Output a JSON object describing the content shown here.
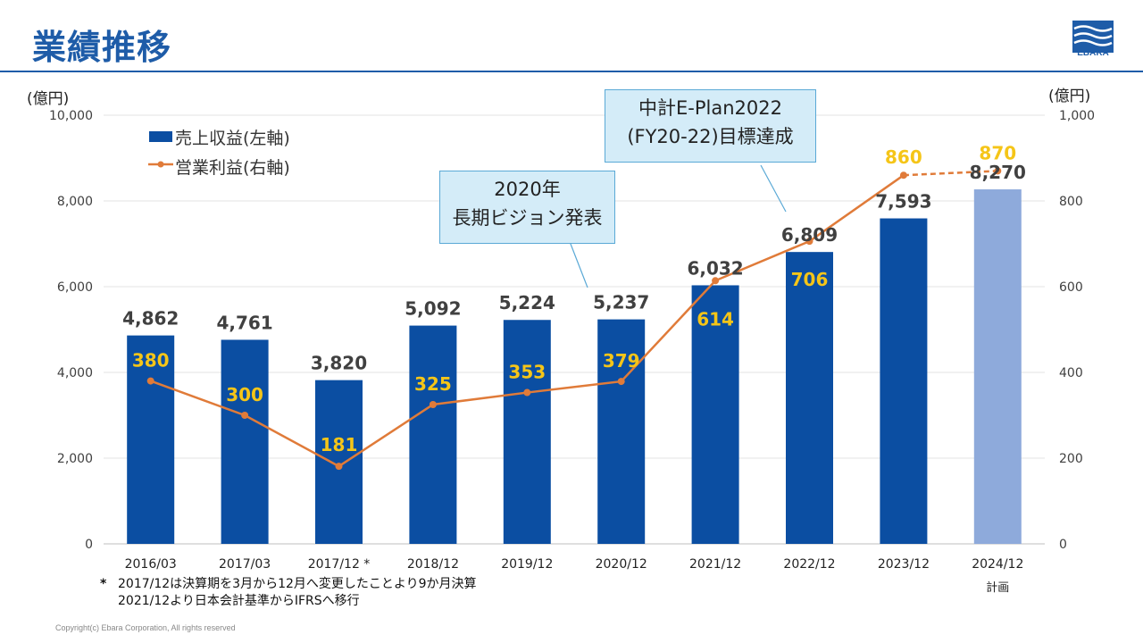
{
  "header": {
    "title": "業績推移",
    "logo_text": "EBARA"
  },
  "units": {
    "left": "(億円)",
    "right": "(億円)"
  },
  "legend": {
    "bar_label": "売上収益(左軸)",
    "line_label": "営業利益(右軸)"
  },
  "callouts": {
    "vision_line1": "2020年",
    "vision_line2": "長期ビジョン発表",
    "plan_line1": "中計E-Plan2022",
    "plan_line2": "(FY20-22)目標達成"
  },
  "footnote": {
    "star": "*",
    "line1": "2017/12は決算期を3月から12月へ変更したことより9か月決算",
    "line2": "2021/12より日本会計基準からIFRSへ移行"
  },
  "copyright": "Copyright(c) Ebara Corporation, All rights reserved",
  "colors": {
    "bar": "#0b4ea2",
    "bar_plan": "#8eaadb",
    "line": "#e07b39",
    "line_label": "#f5c518",
    "bar_label": "#404040"
  },
  "chart_data": {
    "type": "bar",
    "categories": [
      "2016/03",
      "2017/03",
      "2017/12 *",
      "2018/12",
      "2019/12",
      "2020/12",
      "2021/12",
      "2022/12",
      "2023/12",
      "2024/12"
    ],
    "category_sublabels": [
      "",
      "",
      "",
      "",
      "",
      "",
      "",
      "",
      "",
      "計画"
    ],
    "series": [
      {
        "name": "売上収益(左軸)",
        "axis": "left",
        "values": [
          4862,
          4761,
          3820,
          5092,
          5224,
          5237,
          6032,
          6809,
          7593,
          8270
        ],
        "labels": [
          "4,862",
          "4,761",
          "3,820",
          "5,092",
          "5,224",
          "5,237",
          "6,032",
          "6,809",
          "7,593",
          "8,270"
        ]
      },
      {
        "name": "営業利益(右軸)",
        "axis": "right",
        "type": "line",
        "values": [
          380,
          300,
          181,
          325,
          353,
          379,
          614,
          706,
          860,
          870
        ],
        "labels": [
          "380",
          "300",
          "181",
          "325",
          "353",
          "379",
          "614",
          "706",
          "860",
          "870"
        ]
      }
    ],
    "left_axis": {
      "min": 0,
      "max": 10000,
      "ticks": [
        "0",
        "2,000",
        "4,000",
        "6,000",
        "8,000",
        "10,000"
      ]
    },
    "right_axis": {
      "min": 0,
      "max": 1000,
      "ticks": [
        "0",
        "200",
        "400",
        "600",
        "800",
        "1,000"
      ]
    },
    "legend_position": "top-left",
    "grid": true
  }
}
